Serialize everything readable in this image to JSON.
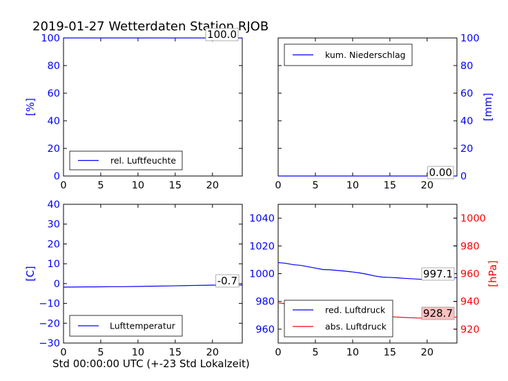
{
  "title": "2019-01-27 Wetterdaten Station RJOB",
  "xlabel": "Std 00:00:00 UTC (+-23 Std Lokalzeit)",
  "colors": {
    "blue": "#0000ff",
    "red": "#ff0000",
    "value_box_red": "#ffc0c0"
  },
  "chart_data": [
    {
      "id": "humidity",
      "type": "line",
      "ylabel": "[%]",
      "xlim": [
        0,
        24
      ],
      "ylim": [
        0,
        100
      ],
      "xticks": [
        "0",
        "5",
        "10",
        "15",
        "20"
      ],
      "yticks": [
        "0",
        "20",
        "40",
        "60",
        "80",
        "100"
      ],
      "legend": {
        "position": "lower-left",
        "entries": [
          "rel. Luftfeuchte"
        ]
      },
      "series": [
        {
          "name": "rel. Luftfeuchte",
          "x": [
            0,
            24
          ],
          "y": [
            100,
            100
          ]
        }
      ],
      "annotation": "100.0"
    },
    {
      "id": "precipitation",
      "type": "line",
      "ylabel": "[mm]",
      "xlim": [
        0,
        24
      ],
      "ylim": [
        0,
        100
      ],
      "xticks": [
        "0",
        "5",
        "10",
        "15",
        "20"
      ],
      "yticks": [
        "0",
        "20",
        "40",
        "60",
        "80",
        "100"
      ],
      "legend": {
        "position": "top-left",
        "entries": [
          "kum. Niederschlag"
        ]
      },
      "series": [
        {
          "name": "kum. Niederschlag",
          "x": [
            0,
            24
          ],
          "y": [
            0,
            0
          ]
        }
      ],
      "annotation": "0.00"
    },
    {
      "id": "temperature",
      "type": "line",
      "ylabel": "[C]",
      "xlim": [
        0,
        24
      ],
      "ylim": [
        -30,
        40
      ],
      "xticks": [
        "0",
        "5",
        "10",
        "15",
        "20"
      ],
      "yticks": [
        "−30",
        "−20",
        "−10",
        "0",
        "10",
        "20",
        "30",
        "40"
      ],
      "legend": {
        "position": "lower-left",
        "entries": [
          "Lufttemperatur"
        ]
      },
      "series": [
        {
          "name": "Lufttemperatur",
          "x": [
            0,
            2,
            4,
            6,
            8,
            10,
            12,
            14,
            16,
            18,
            20,
            22,
            24
          ],
          "y": [
            -1.8,
            -1.7,
            -1.65,
            -1.6,
            -1.55,
            -1.45,
            -1.3,
            -1.2,
            -1.05,
            -0.9,
            -0.8,
            -0.75,
            -0.7
          ]
        }
      ],
      "annotation": "-0.7"
    },
    {
      "id": "pressure",
      "type": "line",
      "ylabel": "[hPa]",
      "xlim": [
        0,
        24
      ],
      "ylim": [
        950,
        1050
      ],
      "y2lim": [
        910,
        1010
      ],
      "xticks": [
        "0",
        "5",
        "10",
        "15",
        "20"
      ],
      "yticks": [
        "960",
        "980",
        "1000",
        "1020",
        "1040"
      ],
      "y2ticks": [
        "920",
        "940",
        "960",
        "980",
        "1000"
      ],
      "legend": {
        "position": "lower-left",
        "entries": [
          "red. Luftdruck",
          "abs. Luftdruck"
        ]
      },
      "series": [
        {
          "name": "red. Luftdruck",
          "axis": "left",
          "x": [
            0,
            1,
            2,
            3,
            4,
            5,
            6,
            7,
            8,
            9,
            10,
            11,
            12,
            13,
            14,
            15,
            16,
            17,
            18,
            19,
            20,
            21,
            22,
            23,
            24
          ],
          "y": [
            1008,
            1007.5,
            1006.5,
            1006,
            1005,
            1004,
            1003,
            1002.8,
            1002.3,
            1001.8,
            1001.2,
            1000.5,
            999.5,
            998.3,
            997.5,
            997.3,
            997,
            996.6,
            996.3,
            996,
            996,
            996.3,
            996.6,
            996.9,
            997.1
          ]
        },
        {
          "name": "abs. Luftdruck",
          "axis": "right",
          "x": [
            0,
            1,
            2,
            3,
            4,
            5,
            6,
            7,
            8,
            9,
            10,
            11,
            12,
            13,
            14,
            15,
            16,
            17,
            18,
            19,
            20,
            21,
            22,
            23,
            24
          ],
          "y": [
            939,
            938.3,
            937.8,
            936.8,
            935.8,
            935,
            934,
            933.8,
            933.4,
            932.7,
            932,
            931.4,
            930.7,
            929.8,
            929.2,
            929,
            928.7,
            928.4,
            928.2,
            928,
            928,
            928.2,
            928.4,
            928.6,
            928.7
          ]
        }
      ],
      "annotations": [
        "997.1",
        "928.7"
      ]
    }
  ]
}
